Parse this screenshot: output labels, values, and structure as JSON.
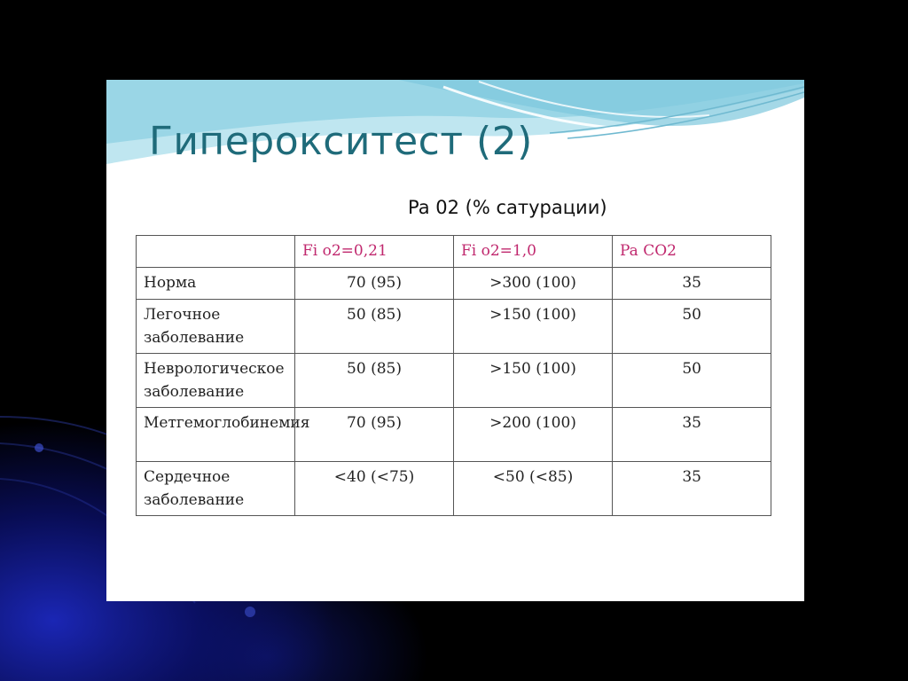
{
  "slide": {
    "title": "Гиперокситест (2)",
    "subtitle": "Pa 02 (% сатурации)"
  },
  "table": {
    "headers": [
      "",
      "Fi o2=0,21",
      "Fi o2=1,0",
      "Pa CO2"
    ],
    "rows": [
      {
        "label": "Норма",
        "fi021": "70 (95)",
        "fi10": ">300 (100)",
        "paco2": "35"
      },
      {
        "label": "Легочное заболевание",
        "fi021": "50 (85)",
        "fi10": ">150 (100)",
        "paco2": "50"
      },
      {
        "label": "Неврологическое заболевание",
        "fi021": "50 (85)",
        "fi10": ">150 (100)",
        "paco2": "50"
      },
      {
        "label": "Метгемоглобинемия",
        "fi021": "70 (95)",
        "fi10": ">200 (100)",
        "paco2": "35"
      },
      {
        "label": "Сердечное заболевание",
        "fi021": "<40 (<75)",
        "fi10": "<50 (<85)",
        "paco2": "35"
      }
    ]
  },
  "colors": {
    "title": "#1f6b7a",
    "header_text": "#c0286e",
    "wave_light": "#bfe6f0",
    "wave_mid": "#7ec8dd",
    "background_glow": "#1c28be"
  }
}
